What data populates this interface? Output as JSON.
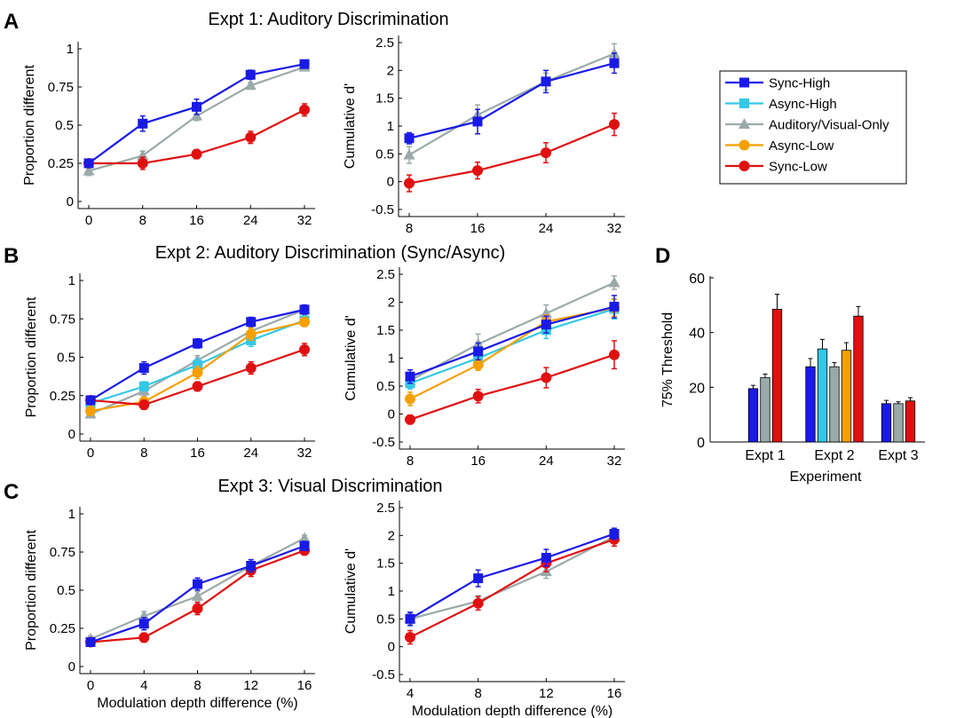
{
  "panel_letters": [
    "A",
    "B",
    "C",
    "D"
  ],
  "panel_titles": {
    "A": "Expt 1: Auditory Discrimination",
    "B": "Expt 2: Auditory Discrimination (Sync/Async)",
    "C": "Expt 3: Visual Discrimination"
  },
  "legend": {
    "placement": "top-right",
    "entries": [
      {
        "label": "Sync-High",
        "color": "#1a1ae6",
        "marker": "square"
      },
      {
        "label": "Async-High",
        "color": "#33c8e6",
        "marker": "square"
      },
      {
        "label": "Auditory/Visual-Only",
        "color": "#9aaaaa",
        "marker": "triangle"
      },
      {
        "label": "Async-Low",
        "color": "#f5a000",
        "marker": "circle"
      },
      {
        "label": "Sync-Low",
        "color": "#e01010",
        "marker": "circle"
      }
    ]
  },
  "colors": {
    "Sync-High": "#1a1ae6",
    "Async-High": "#33c8e6",
    "Auditory/Visual-Only": "#9aaaaa",
    "Async-Low": "#f5a000",
    "Sync-Low": "#e01010"
  },
  "chart_data": [
    {
      "id": "A-left",
      "type": "line",
      "ylabel": "Proportion different",
      "xlabel": "",
      "xlim": [
        0,
        32
      ],
      "ylim": [
        0,
        1
      ],
      "xticks": [
        0,
        8,
        16,
        24,
        32
      ],
      "yticks": [
        0,
        0.25,
        0.5,
        0.75,
        1
      ],
      "ytick_labels": [
        "0",
        "0.25",
        "0.5",
        "0.75",
        "1"
      ],
      "series": [
        {
          "name": "Auditory/Visual-Only",
          "x": [
            0,
            8,
            16,
            24,
            32
          ],
          "values": [
            0.2,
            0.3,
            0.56,
            0.76,
            0.88
          ],
          "err": [
            0.03,
            0.03,
            0.03,
            0.02,
            0.02
          ]
        },
        {
          "name": "Sync-Low",
          "x": [
            0,
            8,
            16,
            24,
            32
          ],
          "values": [
            0.25,
            0.25,
            0.31,
            0.42,
            0.6
          ],
          "err": [
            0.02,
            0.04,
            0.03,
            0.04,
            0.04
          ]
        },
        {
          "name": "Sync-High",
          "x": [
            0,
            8,
            16,
            24,
            32
          ],
          "values": [
            0.25,
            0.51,
            0.62,
            0.83,
            0.9
          ],
          "err": [
            0.02,
            0.05,
            0.05,
            0.03,
            0.02
          ]
        }
      ]
    },
    {
      "id": "A-right",
      "type": "line",
      "ylabel": "Cumulative d'",
      "xlabel": "",
      "xlim": [
        8,
        32
      ],
      "ylim": [
        -0.5,
        2.5
      ],
      "xticks": [
        8,
        16,
        24,
        32
      ],
      "yticks": [
        -0.5,
        0,
        0.5,
        1,
        1.5,
        2,
        2.5
      ],
      "ytick_labels": [
        "-0.5",
        "0",
        "0.5",
        "1",
        "1.5",
        "2",
        "2.5"
      ],
      "series": [
        {
          "name": "Auditory/Visual-Only",
          "x": [
            8,
            16,
            24,
            32
          ],
          "values": [
            0.48,
            1.2,
            1.8,
            2.3
          ],
          "err": [
            0.15,
            0.18,
            0.15,
            0.18
          ]
        },
        {
          "name": "Sync-Low",
          "x": [
            8,
            16,
            24,
            32
          ],
          "values": [
            -0.03,
            0.2,
            0.52,
            1.03
          ],
          "err": [
            0.15,
            0.15,
            0.18,
            0.2
          ]
        },
        {
          "name": "Sync-High",
          "x": [
            8,
            16,
            24,
            32
          ],
          "values": [
            0.78,
            1.08,
            1.8,
            2.13
          ],
          "err": [
            0.1,
            0.22,
            0.2,
            0.18
          ]
        }
      ]
    },
    {
      "id": "B-left",
      "type": "line",
      "ylabel": "Proportion different",
      "xlabel": "",
      "xlim": [
        0,
        32
      ],
      "ylim": [
        0,
        1
      ],
      "xticks": [
        0,
        8,
        16,
        24,
        32
      ],
      "yticks": [
        0,
        0.25,
        0.5,
        0.75,
        1
      ],
      "ytick_labels": [
        "0",
        "0.25",
        "0.5",
        "0.75",
        "1"
      ],
      "series": [
        {
          "name": "Auditory/Visual-Only",
          "x": [
            0,
            8,
            16,
            24,
            32
          ],
          "values": [
            0.13,
            0.28,
            0.48,
            0.67,
            0.81
          ],
          "err": [
            0.02,
            0.03,
            0.03,
            0.04,
            0.03
          ]
        },
        {
          "name": "Async-High",
          "x": [
            0,
            8,
            16,
            24,
            32
          ],
          "values": [
            0.2,
            0.31,
            0.45,
            0.61,
            0.74
          ],
          "err": [
            0.02,
            0.03,
            0.04,
            0.04,
            0.03
          ]
        },
        {
          "name": "Async-Low",
          "x": [
            0,
            8,
            16,
            24,
            32
          ],
          "values": [
            0.15,
            0.21,
            0.4,
            0.65,
            0.73
          ],
          "err": [
            0.02,
            0.03,
            0.04,
            0.04,
            0.03
          ]
        },
        {
          "name": "Sync-Low",
          "x": [
            0,
            8,
            16,
            24,
            32
          ],
          "values": [
            0.22,
            0.19,
            0.31,
            0.43,
            0.55
          ],
          "err": [
            0.02,
            0.03,
            0.03,
            0.04,
            0.04
          ]
        },
        {
          "name": "Sync-High",
          "x": [
            0,
            8,
            16,
            24,
            32
          ],
          "values": [
            0.22,
            0.43,
            0.59,
            0.73,
            0.81
          ],
          "err": [
            0.02,
            0.04,
            0.03,
            0.03,
            0.03
          ]
        }
      ]
    },
    {
      "id": "B-right",
      "type": "line",
      "ylabel": "Cumulative d'",
      "xlabel": "",
      "xlim": [
        8,
        32
      ],
      "ylim": [
        -0.5,
        2.5
      ],
      "xticks": [
        8,
        16,
        24,
        32
      ],
      "yticks": [
        -0.5,
        0,
        0.5,
        1,
        1.5,
        2,
        2.5
      ],
      "ytick_labels": [
        "-0.5",
        "0",
        "0.5",
        "1",
        "1.5",
        "2",
        "2.5"
      ],
      "series": [
        {
          "name": "Auditory/Visual-Only",
          "x": [
            8,
            16,
            24,
            32
          ],
          "values": [
            0.6,
            1.25,
            1.8,
            2.35
          ],
          "err": [
            0.1,
            0.18,
            0.15,
            0.12
          ]
        },
        {
          "name": "Async-High",
          "x": [
            8,
            16,
            24,
            32
          ],
          "values": [
            0.55,
            1.0,
            1.5,
            1.88
          ],
          "err": [
            0.1,
            0.1,
            0.15,
            0.18
          ]
        },
        {
          "name": "Async-Low",
          "x": [
            8,
            16,
            24,
            32
          ],
          "values": [
            0.27,
            0.88,
            1.65,
            1.9
          ],
          "err": [
            0.12,
            0.1,
            0.12,
            0.15
          ]
        },
        {
          "name": "Sync-Low",
          "x": [
            8,
            16,
            24,
            32
          ],
          "values": [
            -0.1,
            0.32,
            0.65,
            1.06
          ],
          "err": [
            0.08,
            0.12,
            0.18,
            0.25
          ]
        },
        {
          "name": "Sync-High",
          "x": [
            8,
            16,
            24,
            32
          ],
          "values": [
            0.67,
            1.12,
            1.6,
            1.92
          ],
          "err": [
            0.12,
            0.15,
            0.15,
            0.2
          ]
        }
      ]
    },
    {
      "id": "C-left",
      "type": "line",
      "ylabel": "Proportion different",
      "xlabel": "Modulation depth difference (%)",
      "xlim": [
        0,
        16
      ],
      "ylim": [
        0,
        1
      ],
      "xticks": [
        0,
        4,
        8,
        12,
        16
      ],
      "yticks": [
        0,
        0.25,
        0.5,
        0.75,
        1
      ],
      "ytick_labels": [
        "0",
        "0.25",
        "0.5",
        "0.75",
        "1"
      ],
      "series": [
        {
          "name": "Auditory/Visual-Only",
          "x": [
            0,
            4,
            8,
            12,
            16
          ],
          "values": [
            0.18,
            0.33,
            0.46,
            0.66,
            0.84
          ],
          "err": [
            0.02,
            0.03,
            0.03,
            0.04,
            0.02
          ]
        },
        {
          "name": "Sync-Low",
          "x": [
            0,
            4,
            8,
            12,
            16
          ],
          "values": [
            0.16,
            0.19,
            0.38,
            0.63,
            0.76
          ],
          "err": [
            0.02,
            0.03,
            0.04,
            0.04,
            0.03
          ]
        },
        {
          "name": "Sync-High",
          "x": [
            0,
            4,
            8,
            12,
            16
          ],
          "values": [
            0.16,
            0.28,
            0.54,
            0.66,
            0.79
          ],
          "err": [
            0.02,
            0.04,
            0.04,
            0.04,
            0.03
          ]
        }
      ]
    },
    {
      "id": "C-right",
      "type": "line",
      "ylabel": "Cumulative d'",
      "xlabel": "Modulation depth difference (%)",
      "xlim": [
        4,
        16
      ],
      "ylim": [
        -0.5,
        2.5
      ],
      "xticks": [
        4,
        8,
        12,
        16
      ],
      "yticks": [
        -0.5,
        0,
        0.5,
        1,
        1.5,
        2,
        2.5
      ],
      "ytick_labels": [
        "-0.5",
        "0",
        "0.5",
        "1",
        "1.5",
        "2",
        "2.5"
      ],
      "series": [
        {
          "name": "Auditory/Visual-Only",
          "x": [
            4,
            8,
            12,
            16
          ],
          "values": [
            0.5,
            0.82,
            1.35,
            1.98
          ],
          "err": [
            0.1,
            0.1,
            0.12,
            0.1
          ]
        },
        {
          "name": "Sync-Low",
          "x": [
            4,
            8,
            12,
            16
          ],
          "values": [
            0.17,
            0.78,
            1.5,
            1.93
          ],
          "err": [
            0.12,
            0.12,
            0.15,
            0.12
          ]
        },
        {
          "name": "Sync-High",
          "x": [
            4,
            8,
            12,
            16
          ],
          "values": [
            0.5,
            1.23,
            1.6,
            2.03
          ],
          "err": [
            0.12,
            0.15,
            0.15,
            0.1
          ]
        }
      ]
    },
    {
      "id": "D",
      "type": "bar",
      "ylabel": "75% Threshold",
      "xlabel": "Experiment",
      "ylim": [
        0,
        60
      ],
      "yticks": [
        0,
        20,
        40,
        60
      ],
      "categories": [
        "Expt 1",
        "Expt 2",
        "Expt 3"
      ],
      "groups": [
        {
          "category": "Expt 1",
          "bars": [
            {
              "series": "Sync-High",
              "value": 19.5,
              "err": 1.2
            },
            {
              "series": "Auditory/Visual-Only",
              "value": 23.5,
              "err": 1.3
            },
            {
              "series": "Sync-Low",
              "value": 48.5,
              "err": 5.5
            }
          ]
        },
        {
          "category": "Expt 2",
          "bars": [
            {
              "series": "Sync-High",
              "value": 27.5,
              "err": 3.0
            },
            {
              "series": "Async-High",
              "value": 34.0,
              "err": 3.5
            },
            {
              "series": "Auditory/Visual-Only",
              "value": 27.5,
              "err": 1.5
            },
            {
              "series": "Async-Low",
              "value": 33.5,
              "err": 2.8
            },
            {
              "series": "Sync-Low",
              "value": 46.0,
              "err": 3.5
            }
          ]
        },
        {
          "category": "Expt 3",
          "bars": [
            {
              "series": "Sync-High",
              "value": 14.0,
              "err": 1.2
            },
            {
              "series": "Auditory/Visual-Only",
              "value": 14.0,
              "err": 0.7
            },
            {
              "series": "Sync-Low",
              "value": 15.0,
              "err": 1.2
            }
          ]
        }
      ]
    }
  ]
}
